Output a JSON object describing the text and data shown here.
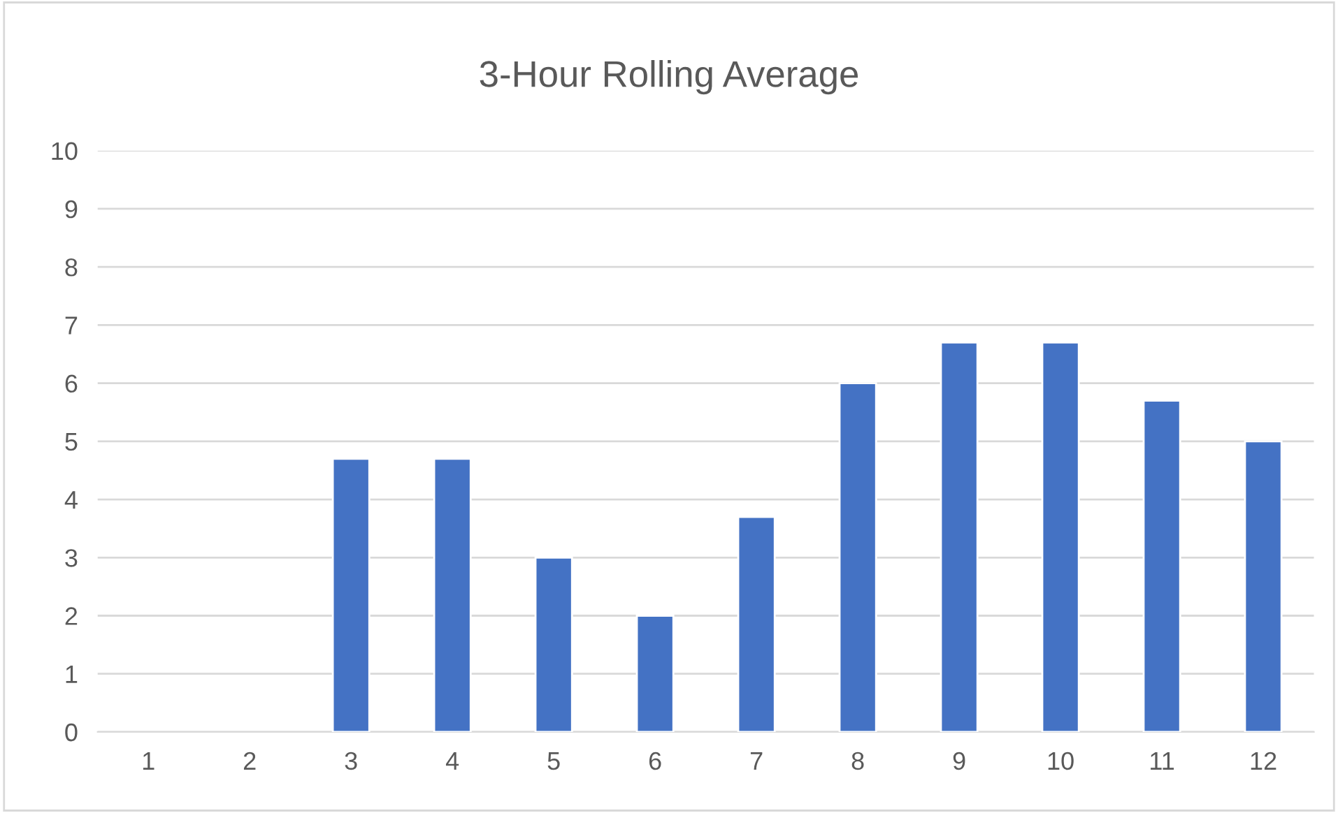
{
  "chart_data": {
    "type": "bar",
    "title": "3-Hour Rolling Average",
    "categories": [
      "1",
      "2",
      "3",
      "4",
      "5",
      "6",
      "7",
      "8",
      "9",
      "10",
      "11",
      "12"
    ],
    "values": [
      null,
      null,
      4.7,
      4.7,
      3,
      2,
      3.7,
      6,
      6.7,
      6.7,
      5.7,
      5
    ],
    "color": "#4472c4",
    "ylim": [
      0,
      10
    ],
    "yticks": [
      0,
      1,
      2,
      3,
      4,
      5,
      6,
      7,
      8,
      9,
      10
    ],
    "grid": "y"
  }
}
